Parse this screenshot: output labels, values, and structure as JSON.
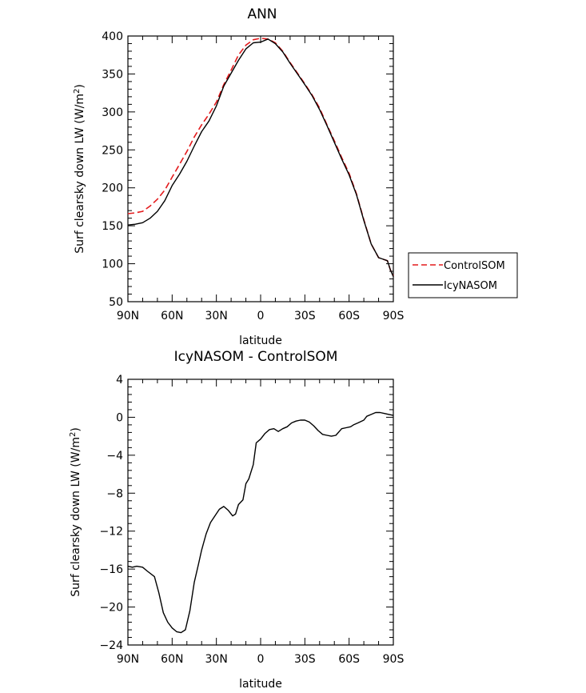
{
  "chart_data": [
    {
      "type": "line",
      "title": "ANN",
      "xlabel": "latitude",
      "ylabel_main": "Surf clearsky down LW (W/m",
      "ylabel_sup": "2",
      "ylabel_end": ")",
      "xlim": [
        90,
        -90
      ],
      "ylim": [
        50,
        400
      ],
      "xticks": [
        90,
        60,
        30,
        0,
        -30,
        -60,
        -90
      ],
      "xtick_labels": [
        "90N",
        "60N",
        "30N",
        "0",
        "30S",
        "60S",
        "90S"
      ],
      "yticks": [
        50,
        100,
        150,
        200,
        250,
        300,
        350,
        400
      ],
      "ytick_labels": [
        "50",
        "100",
        "150",
        "200",
        "250",
        "300",
        "350",
        "400"
      ],
      "legend": {
        "position": "right",
        "entries": [
          {
            "label": "ControlSOM",
            "color": "#e41a1c",
            "style": "dashed"
          },
          {
            "label": "IcyNASOM",
            "color": "#000000",
            "style": "solid"
          }
        ]
      },
      "series": [
        {
          "name": "ControlSOM",
          "color": "#e41a1c",
          "style": "dashed",
          "x": [
            90,
            85,
            80,
            75,
            70,
            65,
            60,
            55,
            50,
            45,
            40,
            35,
            30,
            25,
            20,
            15,
            10,
            5,
            0,
            -5,
            -10,
            -15,
            -20,
            -25,
            -30,
            -35,
            -40,
            -45,
            -50,
            -55,
            -60,
            -65,
            -70,
            -75,
            -80,
            -83,
            -86,
            -88,
            -90
          ],
          "y": [
            166,
            167,
            169,
            176,
            185,
            197,
            214,
            231,
            248,
            267,
            283,
            297,
            313,
            336,
            355,
            375,
            388,
            395,
            397,
            396,
            391,
            380,
            365,
            351,
            337,
            322,
            305,
            283,
            262,
            240,
            219,
            192,
            158,
            126,
            108,
            106,
            104,
            92,
            84
          ]
        },
        {
          "name": "IcyNASOM",
          "color": "#000000",
          "style": "solid",
          "x": [
            90,
            85,
            80,
            75,
            70,
            65,
            60,
            55,
            50,
            45,
            40,
            35,
            30,
            25,
            20,
            15,
            10,
            5,
            0,
            -5,
            -10,
            -15,
            -20,
            -25,
            -30,
            -35,
            -40,
            -45,
            -50,
            -55,
            -60,
            -65,
            -70,
            -75,
            -80,
            -83,
            -86,
            -88,
            -90
          ],
          "y": [
            151,
            152,
            154,
            160,
            169,
            183,
            203,
            218,
            235,
            255,
            274,
            288,
            308,
            334,
            351,
            368,
            383,
            391,
            392,
            396,
            390,
            379,
            364,
            350,
            336,
            321,
            303,
            282,
            260,
            238,
            217,
            191,
            157,
            126,
            108,
            106,
            104,
            92,
            83
          ]
        }
      ]
    },
    {
      "type": "line",
      "title": "IcyNASOM - ControlSOM",
      "xlabel": "latitude",
      "ylabel_main": "Surf clearsky down LW (W/m",
      "ylabel_sup": "2",
      "ylabel_end": ")",
      "xlim": [
        90,
        -90
      ],
      "ylim": [
        -24,
        4
      ],
      "xticks": [
        90,
        60,
        30,
        0,
        -30,
        -60,
        -90
      ],
      "xtick_labels": [
        "90N",
        "60N",
        "30N",
        "0",
        "30S",
        "60S",
        "90S"
      ],
      "yticks": [
        -24,
        -20,
        -16,
        -12,
        -8,
        -4,
        0,
        4
      ],
      "ytick_labels": [
        "−24",
        "−20",
        "−16",
        "−12",
        "−8",
        "−4",
        "0",
        "4"
      ],
      "series": [
        {
          "name": "",
          "color": "#000000",
          "style": "solid",
          "x": [
            90,
            87,
            84,
            80,
            77,
            72,
            69,
            66,
            63,
            60,
            57,
            54,
            51,
            48,
            45,
            42,
            40,
            37,
            34,
            31,
            28,
            25,
            22,
            19,
            17,
            15,
            12,
            10,
            8,
            5,
            3,
            0,
            -3,
            -6,
            -9,
            -12,
            -15,
            -18,
            -21,
            -24,
            -27,
            -30,
            -33,
            -36,
            -39,
            -42,
            -45,
            -48,
            -51,
            -55,
            -58,
            -61,
            -63,
            -66,
            -70,
            -72,
            -75,
            -78,
            -81,
            -84,
            -87,
            -90
          ],
          "y": [
            -15.7,
            -15.8,
            -15.7,
            -15.8,
            -16.2,
            -16.8,
            -18.5,
            -20.6,
            -21.6,
            -22.2,
            -22.6,
            -22.7,
            -22.4,
            -20.4,
            -17.4,
            -15.4,
            -14.0,
            -12.3,
            -11.1,
            -10.4,
            -9.7,
            -9.4,
            -9.8,
            -10.4,
            -10.2,
            -9.2,
            -8.7,
            -7.0,
            -6.5,
            -5.0,
            -2.7,
            -2.3,
            -1.7,
            -1.3,
            -1.2,
            -1.5,
            -1.2,
            -1.0,
            -0.6,
            -0.4,
            -0.3,
            -0.3,
            -0.5,
            -0.9,
            -1.4,
            -1.8,
            -1.9,
            -2.0,
            -1.9,
            -1.2,
            -1.1,
            -1.0,
            -0.8,
            -0.6,
            -0.3,
            0.1,
            0.3,
            0.5,
            0.5,
            0.4,
            0.3,
            0.2
          ]
        }
      ]
    }
  ]
}
